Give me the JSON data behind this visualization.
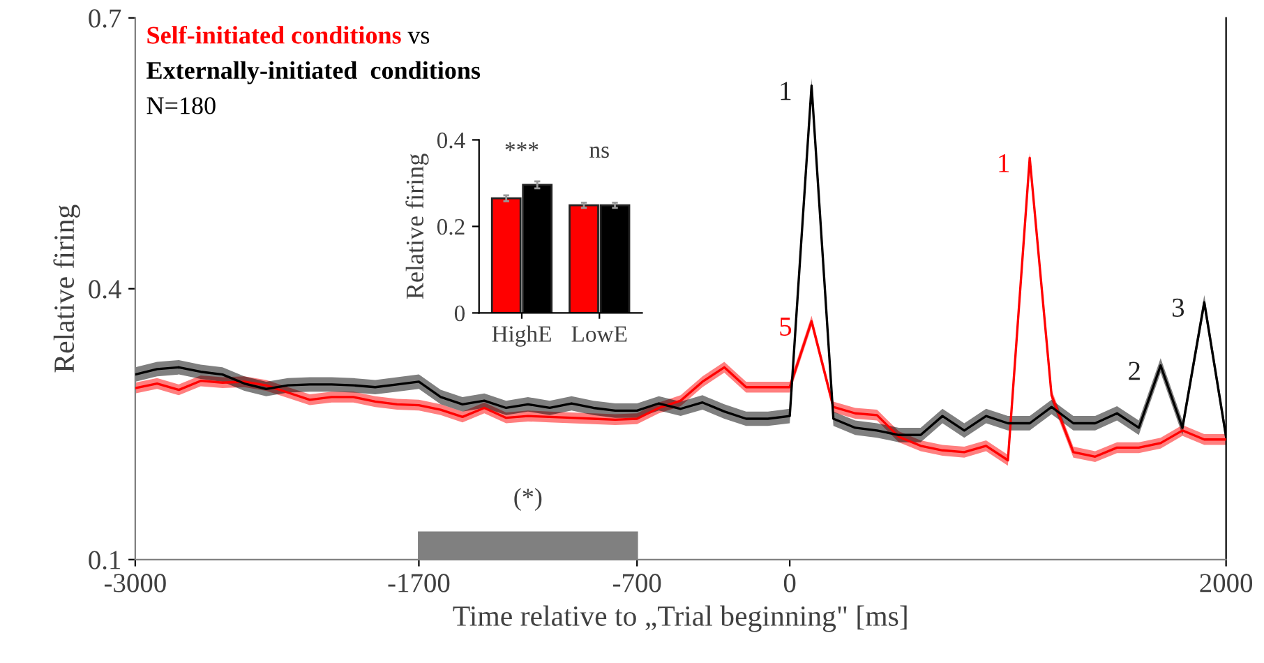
{
  "chart_data": [
    {
      "type": "line",
      "xlabel": "Time relative to „Trial beginning\" [ms]",
      "ylabel": "Relative firing",
      "x": [
        -3000,
        -2900,
        -2800,
        -2700,
        -2600,
        -2500,
        -2400,
        -2300,
        -2200,
        -2100,
        -2000,
        -1900,
        -1800,
        -1700,
        -1600,
        -1500,
        -1400,
        -1300,
        -1200,
        -1100,
        -1000,
        -900,
        -800,
        -700,
        -600,
        -500,
        -400,
        -300,
        -200,
        -100,
        0,
        100,
        200,
        300,
        400,
        500,
        600,
        700,
        800,
        900,
        1000,
        1100,
        1200,
        1300,
        1400,
        1500,
        1600,
        1700,
        1800,
        1900,
        2000
      ],
      "series": [
        {
          "name": "Self-initiated conditions",
          "color": "#ff0000",
          "values": [
            0.29,
            0.295,
            0.288,
            0.298,
            0.296,
            0.297,
            0.293,
            0.285,
            0.277,
            0.28,
            0.28,
            0.275,
            0.272,
            0.271,
            0.266,
            0.258,
            0.268,
            0.257,
            0.259,
            0.258,
            0.257,
            0.256,
            0.255,
            0.256,
            0.268,
            0.276,
            0.297,
            0.313,
            0.291,
            0.291,
            0.291,
            0.364,
            0.269,
            0.262,
            0.26,
            0.236,
            0.226,
            0.221,
            0.219,
            0.226,
            0.21,
            0.545,
            0.282,
            0.219,
            0.214,
            0.224,
            0.224,
            0.229,
            0.243,
            0.233,
            0.233
          ],
          "lower": [
            0.284,
            0.289,
            0.282,
            0.292,
            0.29,
            0.291,
            0.287,
            0.279,
            0.271,
            0.274,
            0.274,
            0.269,
            0.266,
            0.265,
            0.26,
            0.252,
            0.262,
            0.251,
            0.253,
            0.252,
            0.251,
            0.25,
            0.249,
            0.25,
            0.262,
            0.27,
            0.291,
            0.307,
            0.285,
            0.285,
            0.285,
            0.358,
            0.263,
            0.256,
            0.254,
            0.23,
            0.22,
            0.215,
            0.213,
            0.22,
            0.204,
            0.539,
            0.276,
            0.213,
            0.208,
            0.218,
            0.218,
            0.223,
            0.237,
            0.227,
            0.227
          ],
          "upper": [
            0.296,
            0.301,
            0.294,
            0.304,
            0.302,
            0.303,
            0.299,
            0.291,
            0.283,
            0.286,
            0.286,
            0.281,
            0.278,
            0.277,
            0.272,
            0.264,
            0.274,
            0.263,
            0.265,
            0.264,
            0.263,
            0.262,
            0.261,
            0.262,
            0.274,
            0.282,
            0.303,
            0.319,
            0.297,
            0.297,
            0.297,
            0.37,
            0.275,
            0.268,
            0.266,
            0.242,
            0.232,
            0.227,
            0.225,
            0.232,
            0.216,
            0.551,
            0.288,
            0.225,
            0.22,
            0.23,
            0.23,
            0.235,
            0.249,
            0.239,
            0.239
          ]
        },
        {
          "name": "Externally-initiated  conditions",
          "color": "#000000",
          "values": [
            0.305,
            0.311,
            0.313,
            0.308,
            0.305,
            0.295,
            0.289,
            0.293,
            0.294,
            0.294,
            0.293,
            0.291,
            0.294,
            0.297,
            0.28,
            0.272,
            0.276,
            0.268,
            0.272,
            0.268,
            0.273,
            0.268,
            0.265,
            0.265,
            0.273,
            0.267,
            0.274,
            0.264,
            0.256,
            0.256,
            0.259,
            0.625,
            0.256,
            0.246,
            0.243,
            0.238,
            0.238,
            0.259,
            0.243,
            0.259,
            0.251,
            0.251,
            0.269,
            0.251,
            0.251,
            0.262,
            0.246,
            0.315,
            0.246,
            0.385,
            0.236
          ],
          "lower": [
            0.297,
            0.303,
            0.305,
            0.3,
            0.297,
            0.287,
            0.281,
            0.285,
            0.286,
            0.286,
            0.285,
            0.283,
            0.286,
            0.289,
            0.272,
            0.264,
            0.268,
            0.26,
            0.264,
            0.26,
            0.265,
            0.26,
            0.257,
            0.257,
            0.265,
            0.259,
            0.266,
            0.256,
            0.248,
            0.248,
            0.251,
            0.617,
            0.248,
            0.238,
            0.235,
            0.23,
            0.23,
            0.251,
            0.235,
            0.251,
            0.243,
            0.243,
            0.261,
            0.243,
            0.243,
            0.254,
            0.238,
            0.307,
            0.238,
            0.377,
            0.228
          ],
          "upper": [
            0.313,
            0.319,
            0.321,
            0.316,
            0.313,
            0.303,
            0.297,
            0.301,
            0.302,
            0.302,
            0.301,
            0.299,
            0.302,
            0.305,
            0.288,
            0.28,
            0.284,
            0.276,
            0.28,
            0.276,
            0.281,
            0.276,
            0.273,
            0.273,
            0.281,
            0.275,
            0.282,
            0.272,
            0.264,
            0.264,
            0.267,
            0.633,
            0.264,
            0.254,
            0.251,
            0.246,
            0.246,
            0.267,
            0.251,
            0.267,
            0.259,
            0.259,
            0.277,
            0.259,
            0.259,
            0.27,
            0.254,
            0.323,
            0.254,
            0.393,
            0.244
          ]
        }
      ],
      "annotations": [
        "vs",
        "N=180",
        {
          "text": "1",
          "x": 100,
          "y": 0.625
        },
        {
          "text": "5",
          "x": 100,
          "y": 0.364
        },
        {
          "text": "1",
          "x": 1100,
          "y": 0.545
        },
        {
          "text": "2",
          "x": 1700,
          "y": 0.315
        },
        {
          "text": "3",
          "x": 1900,
          "y": 0.385
        }
      ],
      "bands": [
        {
          "axis": "x",
          "from": -1700,
          "to": -700,
          "label": "(*)",
          "color": "#808080"
        }
      ],
      "xlim": [
        -3000,
        2000
      ],
      "xticks": [
        -3000,
        -1700,
        -700,
        0,
        2000
      ],
      "ylim": [
        0.1,
        0.7
      ],
      "yticks": [
        0.1,
        0.4,
        0.7
      ],
      "legend": "top left",
      "grid": false
    },
    {
      "type": "bar",
      "ylabel": "Relative firing",
      "categories": [
        "HighE",
        "LowE"
      ],
      "series": [
        {
          "color": "#ff0000",
          "values": [
            0.265,
            0.249
          ],
          "errors": [
            0.007,
            0.006
          ]
        },
        {
          "color": "#000000",
          "values": [
            0.296,
            0.249
          ],
          "errors": [
            0.008,
            0.006
          ]
        }
      ],
      "annotations": [
        "***",
        "ns"
      ],
      "ylim": [
        0,
        0.4
      ],
      "yticks": [
        0,
        0.2,
        0.4
      ],
      "grid": false
    }
  ]
}
